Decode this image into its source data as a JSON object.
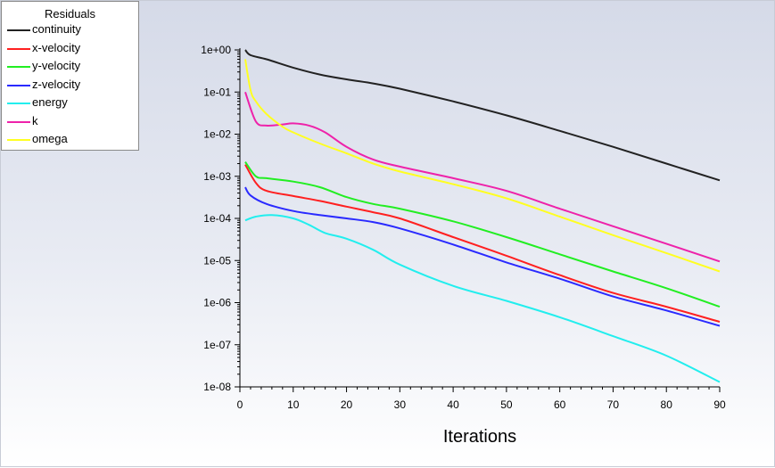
{
  "legend": {
    "title": "Residuals",
    "entries": [
      {
        "label": "continuity",
        "color": "#222222"
      },
      {
        "label": "x-velocity",
        "color": "#ff2020"
      },
      {
        "label": "y-velocity",
        "color": "#22ee22"
      },
      {
        "label": "z-velocity",
        "color": "#2a2aff"
      },
      {
        "label": "energy",
        "color": "#22eeee"
      },
      {
        "label": "k",
        "color": "#ee22aa"
      },
      {
        "label": "omega",
        "color": "#ffff22"
      }
    ]
  },
  "chart_data": {
    "type": "line",
    "title": "",
    "xlabel": "Iterations",
    "ylabel": "",
    "xlim": [
      0,
      90
    ],
    "ylim": [
      1e-08,
      1
    ],
    "yscale": "log",
    "grid": false,
    "legend_position": "top-left",
    "xticks": [
      "0",
      "10",
      "20",
      "30",
      "40",
      "50",
      "60",
      "70",
      "80",
      "90"
    ],
    "yticks": [
      "1e+00",
      "1e-01",
      "1e-02",
      "1e-03",
      "1e-04",
      "1e-05",
      "1e-06",
      "1e-07",
      "1e-08"
    ],
    "series": [
      {
        "name": "continuity",
        "color": "#222222",
        "x": [
          1,
          2,
          5,
          10,
          15,
          20,
          25,
          30,
          40,
          50,
          60,
          70,
          80,
          90
        ],
        "y": [
          1.0,
          0.75,
          0.6,
          0.38,
          0.26,
          0.2,
          0.16,
          0.12,
          0.06,
          0.028,
          0.012,
          0.005,
          0.002,
          0.0008
        ]
      },
      {
        "name": "x-velocity",
        "color": "#ff2020",
        "x": [
          1,
          3,
          5,
          10,
          15,
          20,
          25,
          30,
          40,
          50,
          60,
          70,
          80,
          90
        ],
        "y": [
          0.0019,
          0.0007,
          0.00045,
          0.00034,
          0.00026,
          0.00019,
          0.00014,
          0.0001,
          3.6e-05,
          1.3e-05,
          4.5e-06,
          1.7e-06,
          8e-07,
          3.5e-07
        ]
      },
      {
        "name": "y-velocity",
        "color": "#22ee22",
        "x": [
          1,
          3,
          5,
          10,
          15,
          20,
          25,
          30,
          40,
          50,
          60,
          70,
          80,
          90
        ],
        "y": [
          0.0022,
          0.001,
          0.0009,
          0.00075,
          0.00055,
          0.00032,
          0.00022,
          0.00017,
          8.5e-05,
          3.6e-05,
          1.4e-05,
          5.5e-06,
          2.2e-06,
          8e-07
        ]
      },
      {
        "name": "z-velocity",
        "color": "#2a2aff",
        "x": [
          1,
          2,
          5,
          10,
          15,
          20,
          25,
          30,
          40,
          50,
          60,
          70,
          80,
          90
        ],
        "y": [
          0.00055,
          0.00035,
          0.00022,
          0.00015,
          0.00012,
          0.0001,
          8.2e-05,
          5.8e-05,
          2.4e-05,
          9e-06,
          3.7e-06,
          1.4e-06,
          6.5e-07,
          2.8e-07
        ]
      },
      {
        "name": "energy",
        "color": "#22eeee",
        "x": [
          1,
          3,
          6,
          10,
          13,
          16,
          20,
          25,
          30,
          40,
          50,
          60,
          70,
          80,
          90
        ],
        "y": [
          9e-05,
          0.00011,
          0.00012,
          0.0001,
          7e-05,
          4.5e-05,
          3.3e-05,
          1.8e-05,
          8e-06,
          2.5e-06,
          1.1e-06,
          4.5e-07,
          1.6e-07,
          5.5e-08,
          1.3e-08
        ]
      },
      {
        "name": "k",
        "color": "#ee22aa",
        "x": [
          1,
          3,
          5,
          8,
          10,
          13,
          16,
          20,
          25,
          30,
          40,
          50,
          60,
          70,
          80,
          90
        ],
        "y": [
          0.1,
          0.02,
          0.016,
          0.017,
          0.018,
          0.016,
          0.011,
          0.005,
          0.0025,
          0.0017,
          0.0009,
          0.00045,
          0.00017,
          6.5e-05,
          2.5e-05,
          9.5e-06
        ]
      },
      {
        "name": "omega",
        "color": "#ffff22",
        "x": [
          1,
          2,
          3,
          5,
          8,
          10,
          15,
          20,
          25,
          30,
          40,
          50,
          60,
          70,
          80,
          90
        ],
        "y": [
          0.6,
          0.11,
          0.06,
          0.03,
          0.015,
          0.011,
          0.006,
          0.0035,
          0.002,
          0.0013,
          0.00065,
          0.0003,
          0.00011,
          4e-05,
          1.5e-05,
          5.5e-06
        ]
      }
    ]
  }
}
